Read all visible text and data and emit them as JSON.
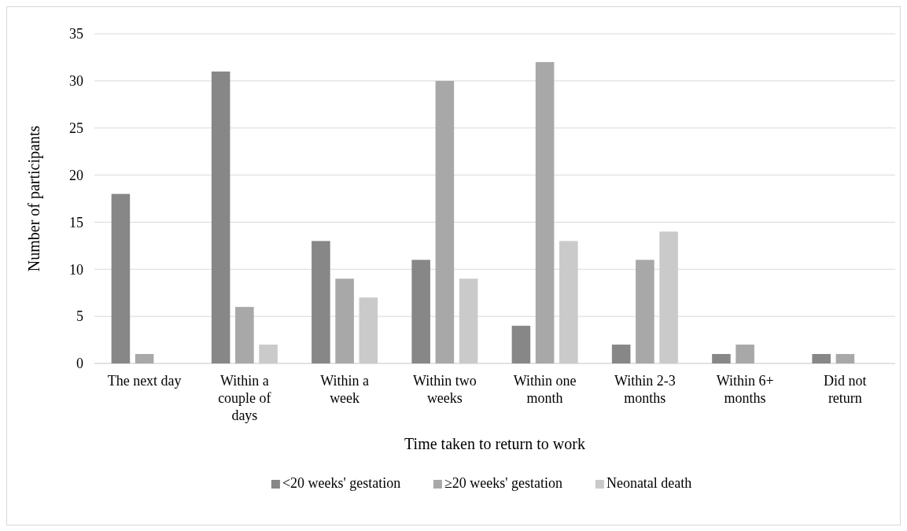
{
  "chart_data": {
    "type": "bar",
    "xlabel": "Time taken to return to work",
    "ylabel": "Number of participants",
    "categories": [
      "The next day",
      "Within a couple of days",
      "Within a week",
      "Within two weeks",
      "Within one month",
      "Within 2-3 months",
      "Within 6+ months",
      "Did not return"
    ],
    "series": [
      {
        "name": "<20 weeks' gestation",
        "color": "#878787",
        "values": [
          18,
          31,
          13,
          11,
          4,
          2,
          1,
          1
        ]
      },
      {
        "name": "≥20 weeks' gestation",
        "color": "#a8a8a8",
        "values": [
          1,
          6,
          9,
          30,
          32,
          11,
          2,
          1
        ]
      },
      {
        "name": "Neonatal death",
        "color": "#cacaca",
        "values": [
          0,
          2,
          7,
          9,
          13,
          14,
          0,
          0
        ]
      }
    ],
    "ylim": [
      0,
      35
    ],
    "yticks": [
      0,
      5,
      10,
      15,
      20,
      25,
      30,
      35
    ],
    "grid": "y",
    "legend": "bottom"
  }
}
